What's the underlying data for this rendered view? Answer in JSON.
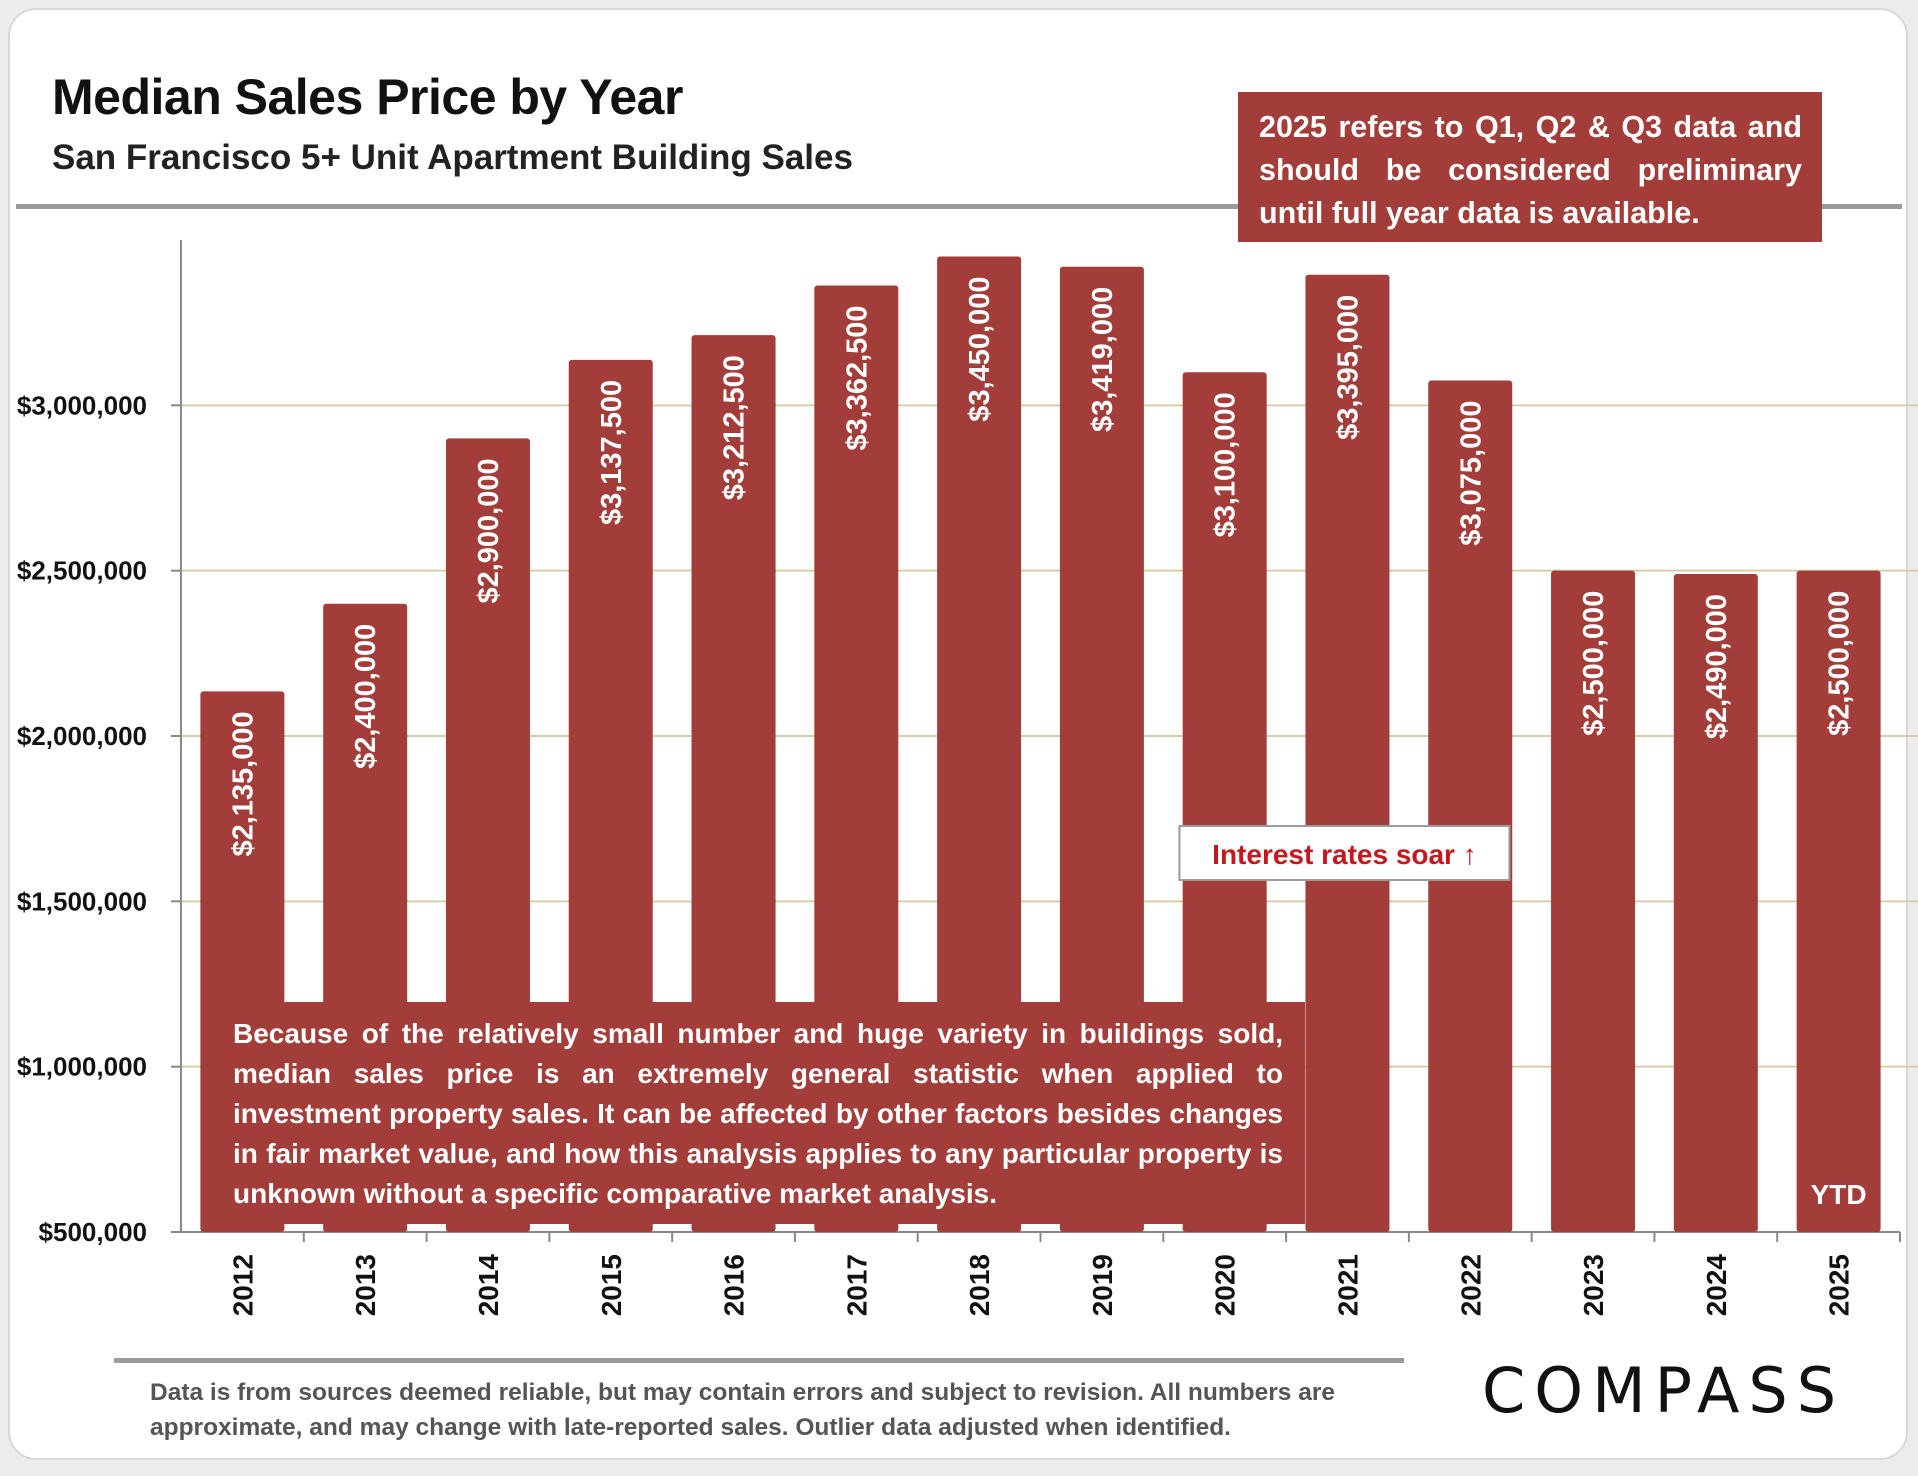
{
  "header": {
    "title": "Median Sales Price by Year",
    "subtitle": "San Francisco 5+ Unit Apartment Building Sales"
  },
  "note_box": {
    "text": "2025 refers to Q1, Q2 & Q3 data and should be considered preliminary until full year data is available."
  },
  "footer": {
    "disclaimer": "Data is from sources deemed reliable, but may contain errors and subject to revision. All numbers are approximate, and may change with late-reported sales.  Outlier data adjusted when identified.",
    "logo": "COMPASS"
  },
  "chart_data": {
    "type": "bar",
    "title": "Median Sales Price by Year",
    "subtitle": "San Francisco 5+ Unit Apartment Building Sales",
    "xlabel": "",
    "ylabel": "",
    "categories": [
      "2012",
      "2013",
      "2014",
      "2015",
      "2016",
      "2017",
      "2018",
      "2019",
      "2020",
      "2021",
      "2022",
      "2023",
      "2024",
      "2025"
    ],
    "values": [
      2135000,
      2400000,
      2900000,
      3137500,
      3212500,
      3362500,
      3450000,
      3419000,
      3100000,
      3395000,
      3075000,
      2500000,
      2490000,
      2500000
    ],
    "value_labels": [
      "$2,135,000",
      "$2,400,000",
      "$2,900,000",
      "$3,137,500",
      "$3,212,500",
      "$3,362,500",
      "$3,450,000",
      "$3,419,000",
      "$3,100,000",
      "$3,395,000",
      "$3,075,000",
      "$2,500,000",
      "$2,490,000",
      "$2,500,000"
    ],
    "ylim": [
      500000,
      3500000
    ],
    "yticks": [
      500000,
      1000000,
      1500000,
      2000000,
      2500000,
      3000000
    ],
    "ytick_labels": [
      "$500,000",
      "$1,000,000",
      "$1,500,000",
      "$2,000,000",
      "$2,500,000",
      "$3,000,000"
    ],
    "grid": true,
    "bar_color": "#a23d39",
    "grid_color": "#d6cfa6",
    "annotations": [
      {
        "text": "Interest rates soar ↑",
        "color": "#c8161d",
        "near_category": "2021"
      },
      {
        "text": "YTD",
        "near_category": "2025"
      },
      {
        "text": "Because of the relatively small number and huge variety in buildings sold, median sales price is an extremely general statistic when applied to investment property sales. It can be affected by other factors besides changes in fair market value, and how this analysis applies to any particular property is unknown without a specific comparative market analysis."
      }
    ]
  }
}
